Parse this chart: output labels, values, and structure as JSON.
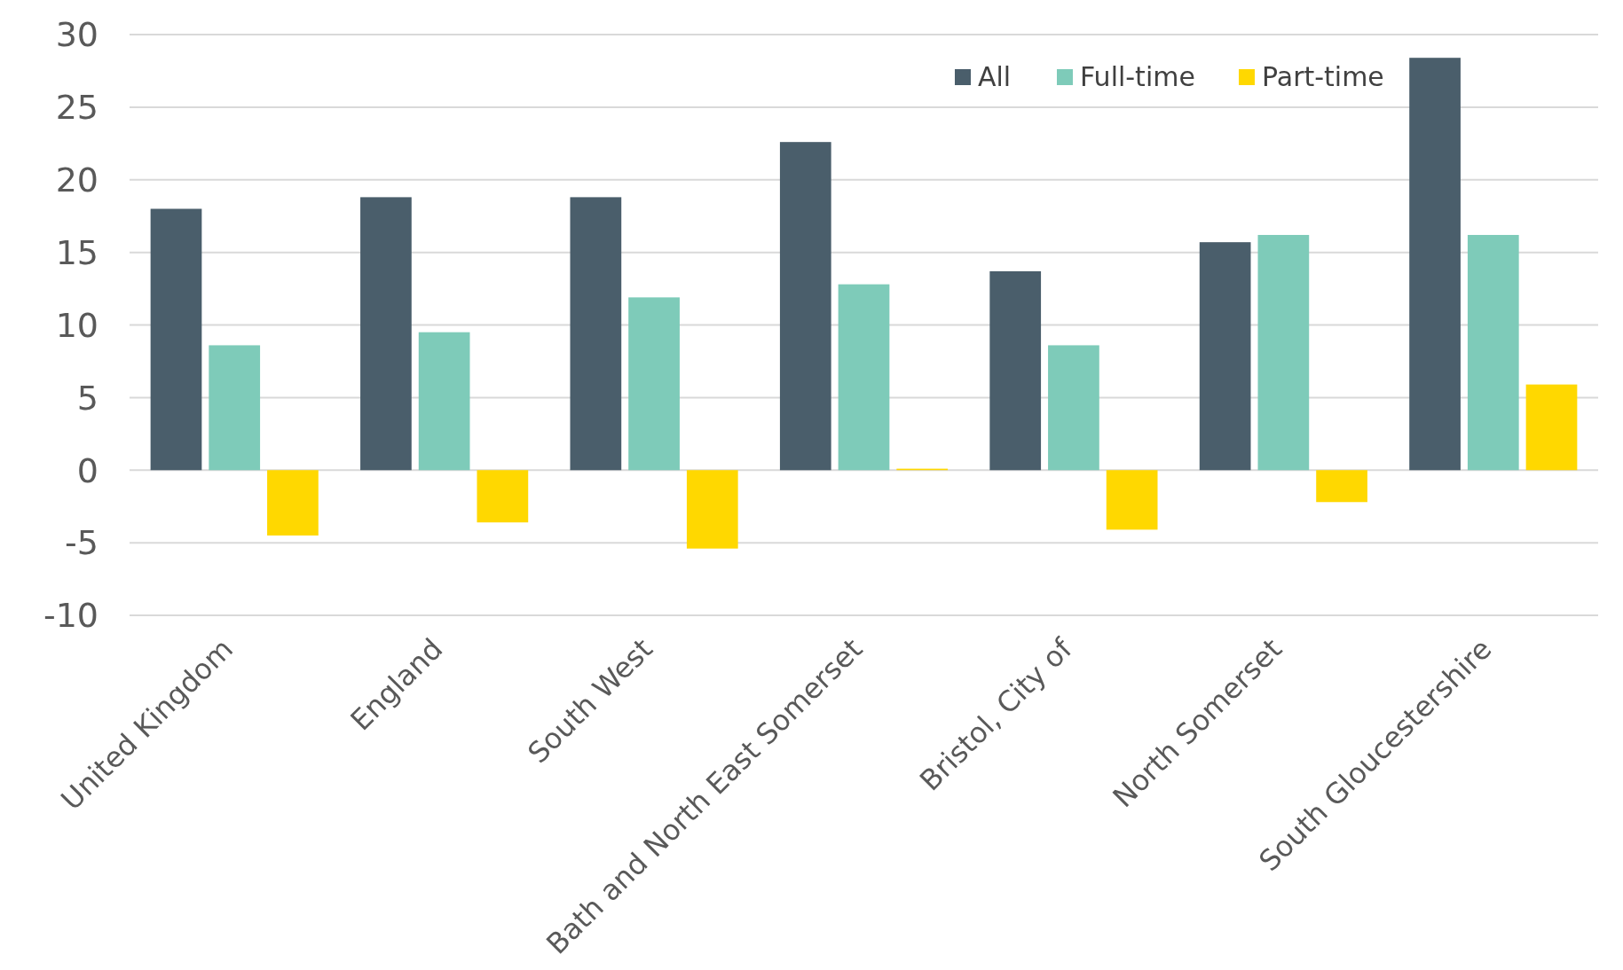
{
  "chart_data": {
    "type": "bar",
    "categories": [
      "United Kingdom",
      "England",
      "South West",
      "Bath and North East Somerset",
      "Bristol, City of",
      "North Somerset",
      "South Gloucestershire"
    ],
    "series": [
      {
        "name": "All",
        "color": "#4a5e6b",
        "values": [
          18.0,
          18.8,
          18.8,
          22.6,
          13.7,
          15.7,
          28.4
        ]
      },
      {
        "name": "Full-time",
        "color": "#7ecbb9",
        "values": [
          8.6,
          9.5,
          11.9,
          12.8,
          8.6,
          16.2,
          16.2
        ]
      },
      {
        "name": "Part-time",
        "color": "#ffd800",
        "values": [
          -4.5,
          -3.6,
          -5.4,
          0.1,
          -4.1,
          -2.2,
          5.9
        ]
      }
    ],
    "ylim": [
      -10,
      30
    ],
    "yticks": [
      -10,
      -5,
      0,
      5,
      10,
      15,
      20,
      25,
      30
    ],
    "grid": "y",
    "legend": "top right"
  }
}
